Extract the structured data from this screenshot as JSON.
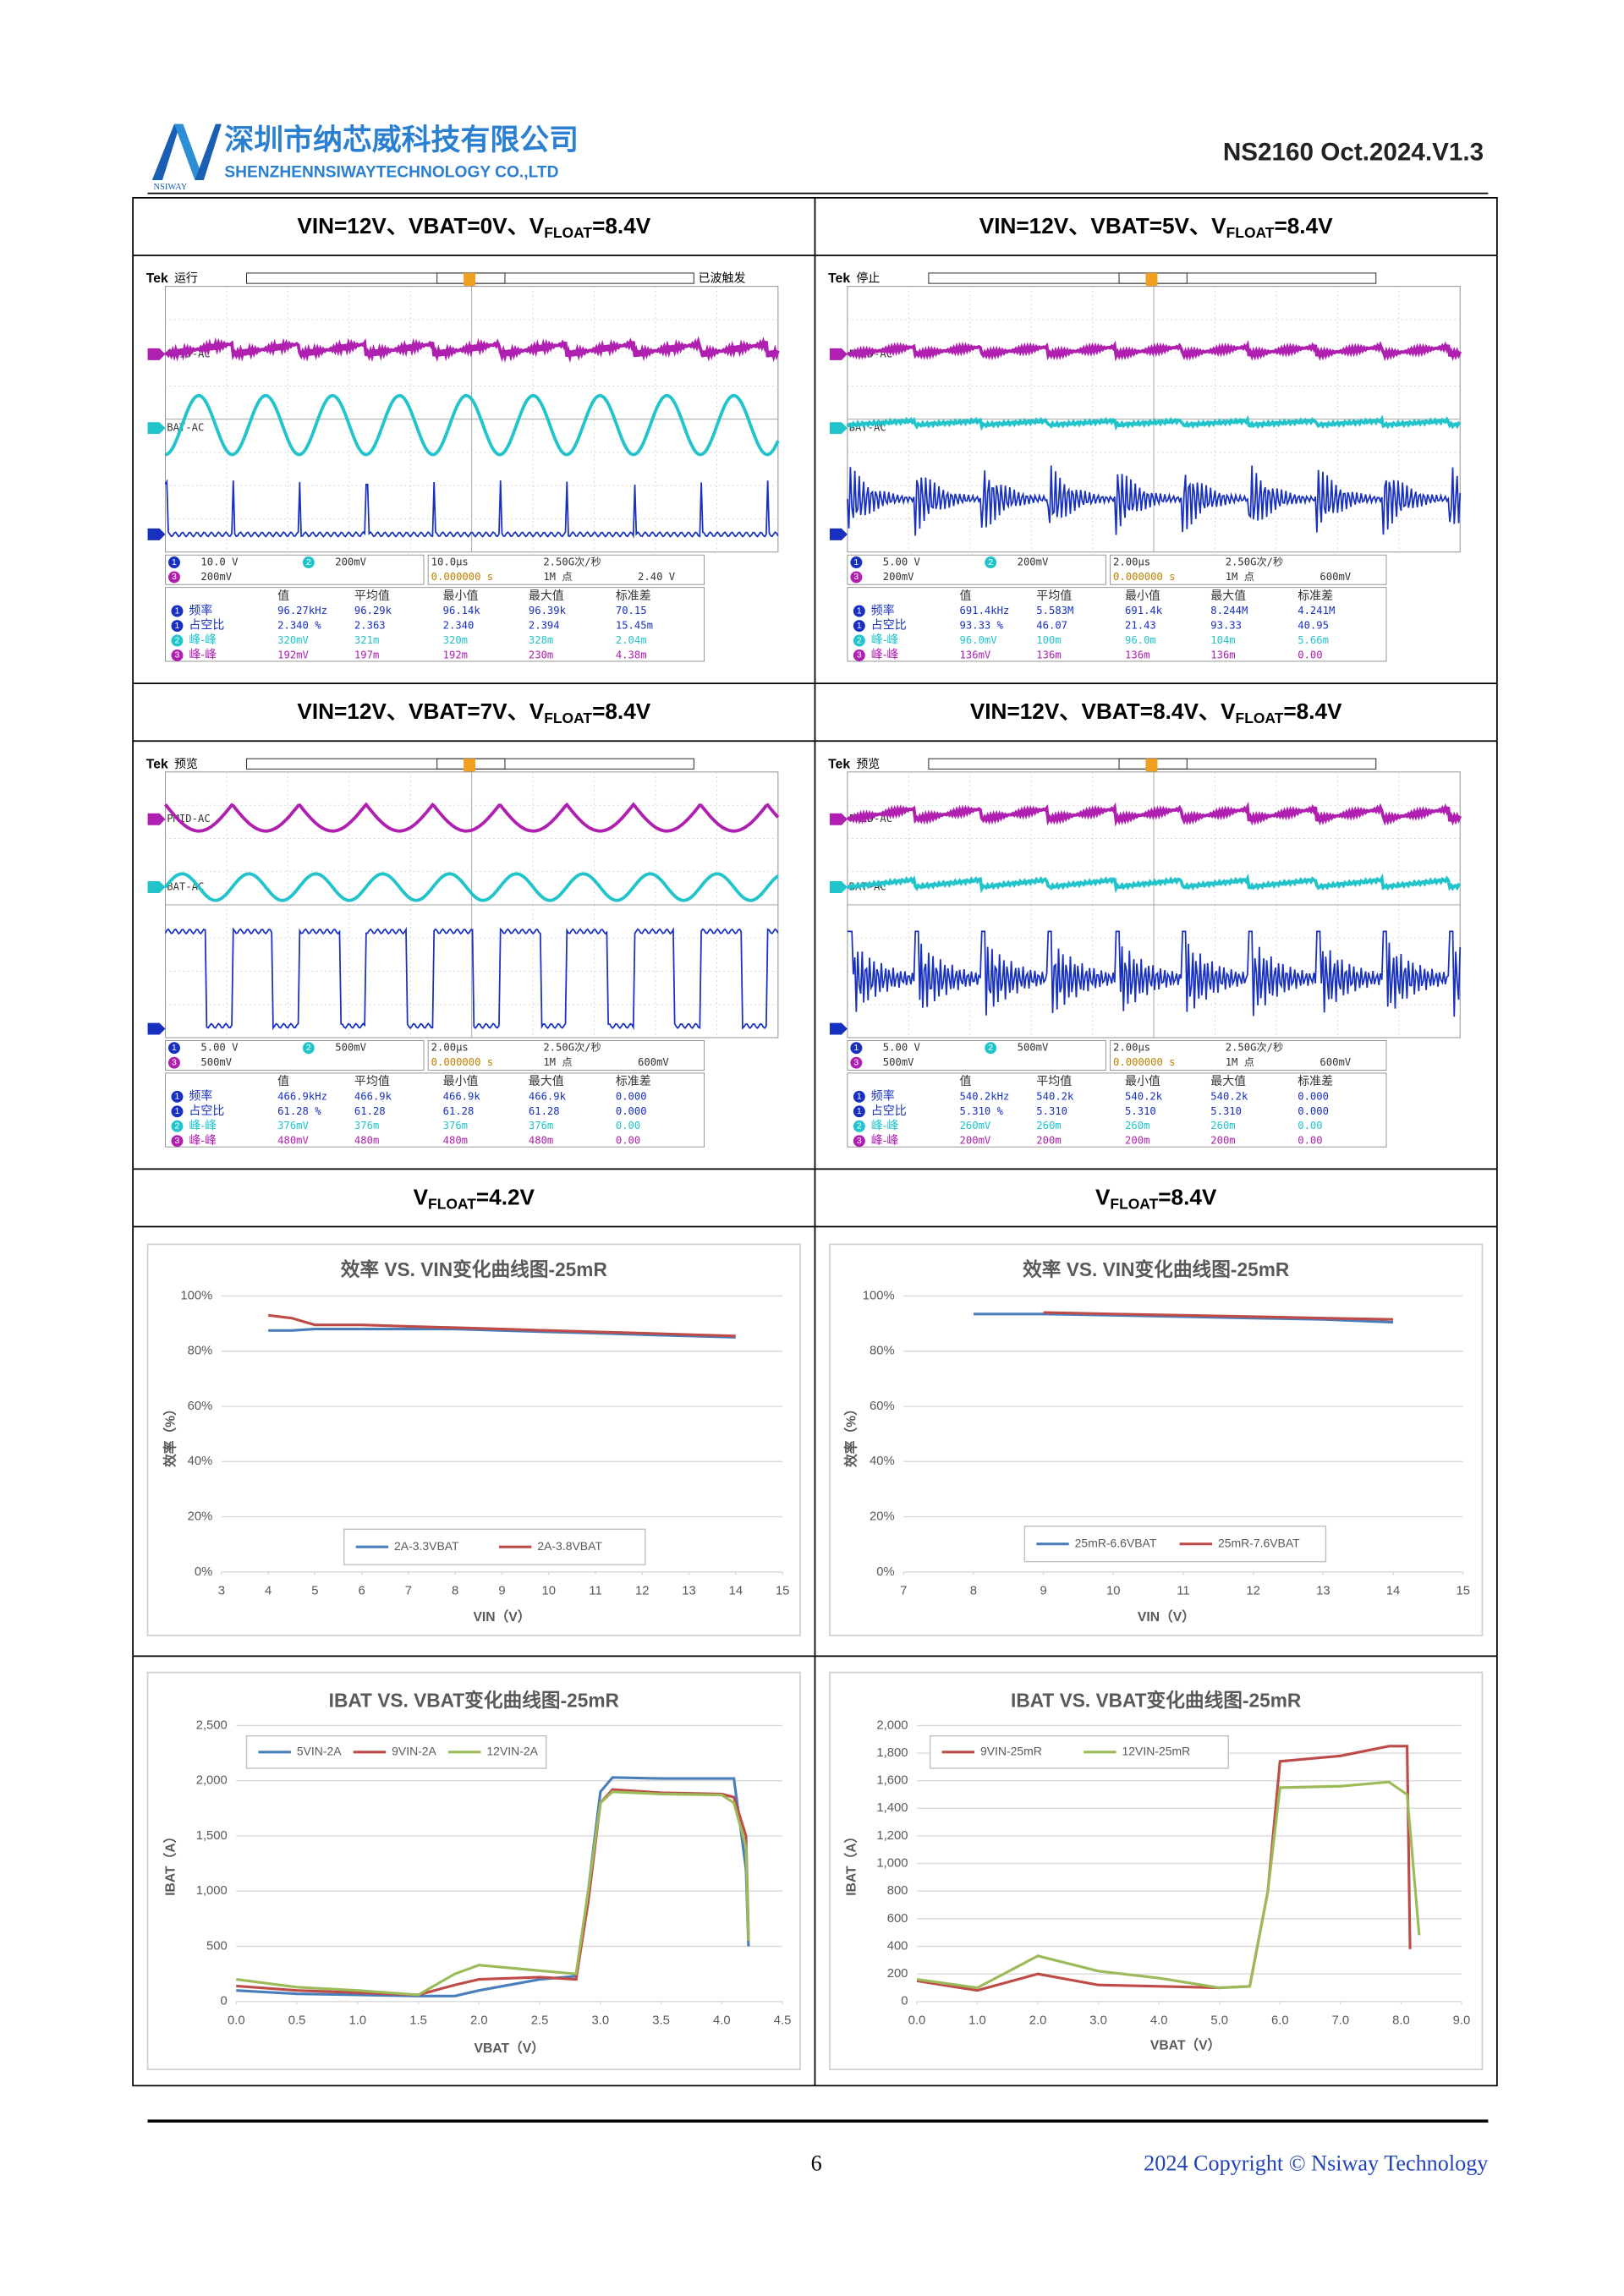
{
  "header": {
    "company_cn": "深圳市纳芯威科技有限公司",
    "company_en": "SHENZHENNSIWAYTECHNOLOGY CO.,LTD",
    "logo_text": "NSIWAY",
    "doc_id": "NS2160 Oct.2024.V1.3"
  },
  "table": {
    "captions": [
      {
        "pre": "VIN=12V、VBAT=0V、V",
        "sub": "FLOAT",
        "post": "=8.4V"
      },
      {
        "pre": "VIN=12V、VBAT=5V、V",
        "sub": "FLOAT",
        "post": "=8.4V"
      },
      {
        "pre": "VIN=12V、VBAT=7V、V",
        "sub": "FLOAT",
        "post": "=8.4V"
      },
      {
        "pre": "VIN=12V、VBAT=8.4V、V",
        "sub": "FLOAT",
        "post": "=8.4V"
      },
      {
        "pre": "V",
        "sub": "FLOAT",
        "post": "=4.2V"
      },
      {
        "pre": "V",
        "sub": "FLOAT",
        "post": "=8.4V"
      }
    ]
  },
  "scopes": [
    {
      "brand": "Tek",
      "status": "运行",
      "trigger_status": "已波触发",
      "ch_labels": [
        "PMID-AC",
        "BAT-AC"
      ],
      "settings": [
        {
          "ch": "1",
          "value": "10.0 V"
        },
        {
          "ch": "2",
          "value": "200mV"
        },
        {
          "ch": "3",
          "value": "200mV"
        }
      ],
      "timebase": [
        "10.0μs",
        "0.000000 s",
        "2.50G次/秒",
        "1M 点",
        "2.40 V"
      ],
      "meas_header": [
        "值",
        "平均值",
        "最小值",
        "最大值",
        "标准差"
      ],
      "meas_rows": [
        {
          "ch": "1",
          "label": "频率",
          "values": [
            "96.27kHz",
            "96.29k",
            "96.14k",
            "96.39k",
            "70.15"
          ]
        },
        {
          "ch": "1",
          "label": "占空比",
          "values": [
            "2.340 %",
            "2.363",
            "2.340",
            "2.394",
            "15.45m"
          ]
        },
        {
          "ch": "2",
          "label": "峰-峰",
          "values": [
            "320mV",
            "321m",
            "320m",
            "328m",
            "2.04m"
          ]
        },
        {
          "ch": "3",
          "label": "峰-峰",
          "values": [
            "192mV",
            "197m",
            "192m",
            "230m",
            "4.38m"
          ]
        }
      ]
    },
    {
      "brand": "Tek",
      "status": "停止",
      "ch_labels": [
        "PMID-AC",
        "BAT-AC"
      ],
      "settings": [
        {
          "ch": "1",
          "value": "5.00 V"
        },
        {
          "ch": "2",
          "value": "200mV"
        },
        {
          "ch": "3",
          "value": "200mV"
        }
      ],
      "timebase": [
        "2.00μs",
        "0.000000 s",
        "2.50G次/秒",
        "1M 点",
        "600mV"
      ],
      "meas_header": [
        "值",
        "平均值",
        "最小值",
        "最大值",
        "标准差"
      ],
      "meas_rows": [
        {
          "ch": "1",
          "label": "频率",
          "values": [
            "691.4kHz",
            "5.583M",
            "691.4k",
            "8.244M",
            "4.241M"
          ]
        },
        {
          "ch": "1",
          "label": "占空比",
          "values": [
            "93.33 %",
            "46.07",
            "21.43",
            "93.33",
            "40.95"
          ]
        },
        {
          "ch": "2",
          "label": "峰-峰",
          "values": [
            "96.0mV",
            "100m",
            "96.0m",
            "104m",
            "5.66m"
          ]
        },
        {
          "ch": "3",
          "label": "峰-峰",
          "values": [
            "136mV",
            "136m",
            "136m",
            "136m",
            "0.00"
          ]
        }
      ]
    },
    {
      "brand": "Tek",
      "status": "预览",
      "ch_labels": [
        "PMID-AC",
        "BAT-AC"
      ],
      "settings": [
        {
          "ch": "1",
          "value": "5.00 V"
        },
        {
          "ch": "2",
          "value": "500mV"
        },
        {
          "ch": "3",
          "value": "500mV"
        }
      ],
      "timebase": [
        "2.00μs",
        "0.000000 s",
        "2.50G次/秒",
        "1M 点",
        "600mV"
      ],
      "meas_header": [
        "值",
        "平均值",
        "最小值",
        "最大值",
        "标准差"
      ],
      "meas_rows": [
        {
          "ch": "1",
          "label": "频率",
          "values": [
            "466.9kHz",
            "466.9k",
            "466.9k",
            "466.9k",
            "0.000"
          ]
        },
        {
          "ch": "1",
          "label": "占空比",
          "values": [
            "61.28 %",
            "61.28",
            "61.28",
            "61.28",
            "0.000"
          ]
        },
        {
          "ch": "2",
          "label": "峰-峰",
          "values": [
            "376mV",
            "376m",
            "376m",
            "376m",
            "0.00"
          ]
        },
        {
          "ch": "3",
          "label": "峰-峰",
          "values": [
            "480mV",
            "480m",
            "480m",
            "480m",
            "0.00"
          ]
        }
      ]
    },
    {
      "brand": "Tek",
      "status": "预览",
      "ch_labels": [
        "PMID-AC",
        "BAT-AC"
      ],
      "settings": [
        {
          "ch": "1",
          "value": "5.00 V"
        },
        {
          "ch": "2",
          "value": "500mV"
        },
        {
          "ch": "3",
          "value": "500mV"
        }
      ],
      "timebase": [
        "2.00μs",
        "0.000000 s",
        "2.50G次/秒",
        "1M 点",
        "600mV"
      ],
      "meas_header": [
        "值",
        "平均值",
        "最小值",
        "最大值",
        "标准差"
      ],
      "meas_rows": [
        {
          "ch": "1",
          "label": "频率",
          "values": [
            "540.2kHz",
            "540.2k",
            "540.2k",
            "540.2k",
            "0.000"
          ]
        },
        {
          "ch": "1",
          "label": "占空比",
          "values": [
            "5.310 %",
            "5.310",
            "5.310",
            "5.310",
            "0.000"
          ]
        },
        {
          "ch": "2",
          "label": "峰-峰",
          "values": [
            "260mV",
            "260m",
            "260m",
            "260m",
            "0.00"
          ]
        },
        {
          "ch": "3",
          "label": "峰-峰",
          "values": [
            "200mV",
            "200m",
            "200m",
            "200m",
            "0.00"
          ]
        }
      ]
    }
  ],
  "chart_data": [
    {
      "type": "line",
      "title": "效率 VS. VIN变化曲线图-25mR",
      "x_label": "VIN（V）",
      "y_label": "效率（%）",
      "legend": "bottom",
      "xlim": [
        3,
        15
      ],
      "xticks": [
        3,
        4,
        5,
        6,
        7,
        8,
        9,
        10,
        11,
        12,
        13,
        14,
        15
      ],
      "ylim": [
        0,
        100
      ],
      "yticks": [
        {
          "value": 0,
          "label": "0%"
        },
        {
          "value": 20,
          "label": "20%"
        },
        {
          "value": 40,
          "label": "40%"
        },
        {
          "value": 60,
          "label": "60%"
        },
        {
          "value": 80,
          "label": "80%"
        },
        {
          "value": 100,
          "label": "100%"
        }
      ],
      "series": [
        {
          "name": "2A-3.3VBAT",
          "color": "#4a7ebb",
          "x": [
            4,
            4.5,
            5,
            6,
            7,
            8,
            9,
            10,
            11,
            12,
            13,
            14
          ],
          "values": [
            87.5,
            87.5,
            88,
            88,
            88,
            88,
            87.5,
            87,
            86.5,
            86,
            85.5,
            85
          ]
        },
        {
          "name": "2A-3.8VBAT",
          "color": "#be4b48",
          "x": [
            4,
            4.5,
            5,
            6,
            7,
            8,
            9,
            10,
            11,
            12,
            13,
            14
          ],
          "values": [
            93,
            92,
            89.5,
            89.5,
            89,
            88.5,
            88,
            87.5,
            87,
            86.5,
            86,
            85.5
          ]
        }
      ]
    },
    {
      "type": "line",
      "title": "效率 VS. VIN变化曲线图-25mR",
      "x_label": "VIN（V）",
      "y_label": "效率（%）",
      "legend": "bottom",
      "xlim": [
        7,
        15
      ],
      "xticks": [
        7,
        8,
        9,
        10,
        11,
        12,
        13,
        14,
        15
      ],
      "ylim": [
        0,
        100
      ],
      "yticks": [
        {
          "value": 0,
          "label": "0%"
        },
        {
          "value": 20,
          "label": "20%"
        },
        {
          "value": 40,
          "label": "40%"
        },
        {
          "value": 60,
          "label": "60%"
        },
        {
          "value": 80,
          "label": "80%"
        },
        {
          "value": 100,
          "label": "100%"
        }
      ],
      "series": [
        {
          "name": "25mR-6.6VBAT",
          "color": "#4a7ebb",
          "x": [
            8,
            9,
            10,
            11,
            12,
            13,
            14
          ],
          "values": [
            93.5,
            93.5,
            93,
            92.5,
            92,
            91.5,
            90.5
          ]
        },
        {
          "name": "25mR-7.6VBAT",
          "color": "#be4b48",
          "x": [
            9,
            10,
            11,
            12,
            13,
            14
          ],
          "values": [
            94,
            93.5,
            93,
            92.5,
            92,
            91.5
          ]
        }
      ]
    },
    {
      "type": "line",
      "title": "IBAT VS. VBAT变化曲线图-25mR",
      "x_label": "VBAT（V）",
      "y_label": "IBAT（A）",
      "legend": "top-left",
      "xlim": [
        0,
        4.5
      ],
      "xticks": [
        {
          "value": 0,
          "label": "0.0"
        },
        0.5,
        {
          "value": 1,
          "label": "1.0"
        },
        1.5,
        {
          "value": 2,
          "label": "2.0"
        },
        2.5,
        {
          "value": 3,
          "label": "3.0"
        },
        3.5,
        {
          "value": 4,
          "label": "4.0"
        },
        4.5
      ],
      "ylim": [
        0,
        2500
      ],
      "yticks": [
        0,
        500,
        {
          "value": 1000,
          "label": "1,000"
        },
        {
          "value": 1500,
          "label": "1,500"
        },
        {
          "value": 2000,
          "label": "2,000"
        },
        {
          "value": 2500,
          "label": "2,500"
        }
      ],
      "series": [
        {
          "name": "5VIN-2A",
          "color": "#4a7ebb",
          "x": [
            0,
            0.5,
            1,
            1.5,
            1.8,
            2,
            2.5,
            2.8,
            2.9,
            3,
            3.1,
            3.5,
            4,
            4.1,
            4.2,
            4.22
          ],
          "values": [
            100,
            70,
            60,
            50,
            50,
            100,
            200,
            230,
            1000,
            1900,
            2030,
            2020,
            2020,
            2020,
            1200,
            500
          ]
        },
        {
          "name": "9VIN-2A",
          "color": "#be4b48",
          "x": [
            0,
            0.5,
            1,
            1.5,
            1.8,
            2,
            2.5,
            2.8,
            2.9,
            3,
            3.1,
            3.5,
            4,
            4.1,
            4.2,
            4.22
          ],
          "values": [
            140,
            100,
            80,
            60,
            150,
            200,
            220,
            200,
            900,
            1800,
            1920,
            1890,
            1880,
            1850,
            1500,
            600
          ]
        },
        {
          "name": "12VIN-2A",
          "color": "#9bbb59",
          "x": [
            0,
            0.5,
            1,
            1.5,
            1.8,
            2,
            2.5,
            2.8,
            2.9,
            3,
            3.1,
            3.5,
            4,
            4.1,
            4.2,
            4.22
          ],
          "values": [
            200,
            130,
            100,
            60,
            250,
            330,
            280,
            250,
            1000,
            1800,
            1900,
            1880,
            1870,
            1800,
            1400,
            550
          ]
        }
      ]
    },
    {
      "type": "line",
      "title": "IBAT VS. VBAT变化曲线图-25mR",
      "x_label": "VBAT（V）",
      "y_label": "IBAT（A）",
      "legend": "top-left",
      "xlim": [
        0,
        9
      ],
      "xticks": [
        {
          "value": 0,
          "label": "0.0"
        },
        {
          "value": 1,
          "label": "1.0"
        },
        {
          "value": 2,
          "label": "2.0"
        },
        {
          "value": 3,
          "label": "3.0"
        },
        {
          "value": 4,
          "label": "4.0"
        },
        {
          "value": 5,
          "label": "5.0"
        },
        {
          "value": 6,
          "label": "6.0"
        },
        {
          "value": 7,
          "label": "7.0"
        },
        {
          "value": 8,
          "label": "8.0"
        },
        {
          "value": 9,
          "label": "9.0"
        }
      ],
      "ylim": [
        0,
        2000
      ],
      "yticks": [
        0,
        200,
        400,
        600,
        800,
        {
          "value": 1000,
          "label": "1,000"
        },
        {
          "value": 1200,
          "label": "1,200"
        },
        {
          "value": 1400,
          "label": "1,400"
        },
        {
          "value": 1600,
          "label": "1,600"
        },
        {
          "value": 1800,
          "label": "1,800"
        },
        {
          "value": 2000,
          "label": "2,000"
        }
      ],
      "series": [
        {
          "name": "9VIN-25mR",
          "color": "#be4b48",
          "x": [
            0,
            1,
            2,
            3,
            4,
            5,
            5.5,
            5.8,
            6,
            7,
            7.8,
            8.1,
            8.15
          ],
          "values": [
            150,
            80,
            200,
            120,
            110,
            100,
            110,
            800,
            1740,
            1780,
            1850,
            1850,
            380
          ]
        },
        {
          "name": "12VIN-25mR",
          "color": "#9bbb59",
          "x": [
            0,
            1,
            2,
            3,
            4,
            5,
            5.5,
            5.8,
            6,
            7,
            7.8,
            8.1,
            8.3
          ],
          "values": [
            160,
            100,
            330,
            220,
            170,
            100,
            110,
            800,
            1550,
            1560,
            1590,
            1500,
            480
          ]
        }
      ]
    }
  ],
  "footer": {
    "page": "6",
    "copyright": "2024 Copyright © Nsiway Technology"
  }
}
